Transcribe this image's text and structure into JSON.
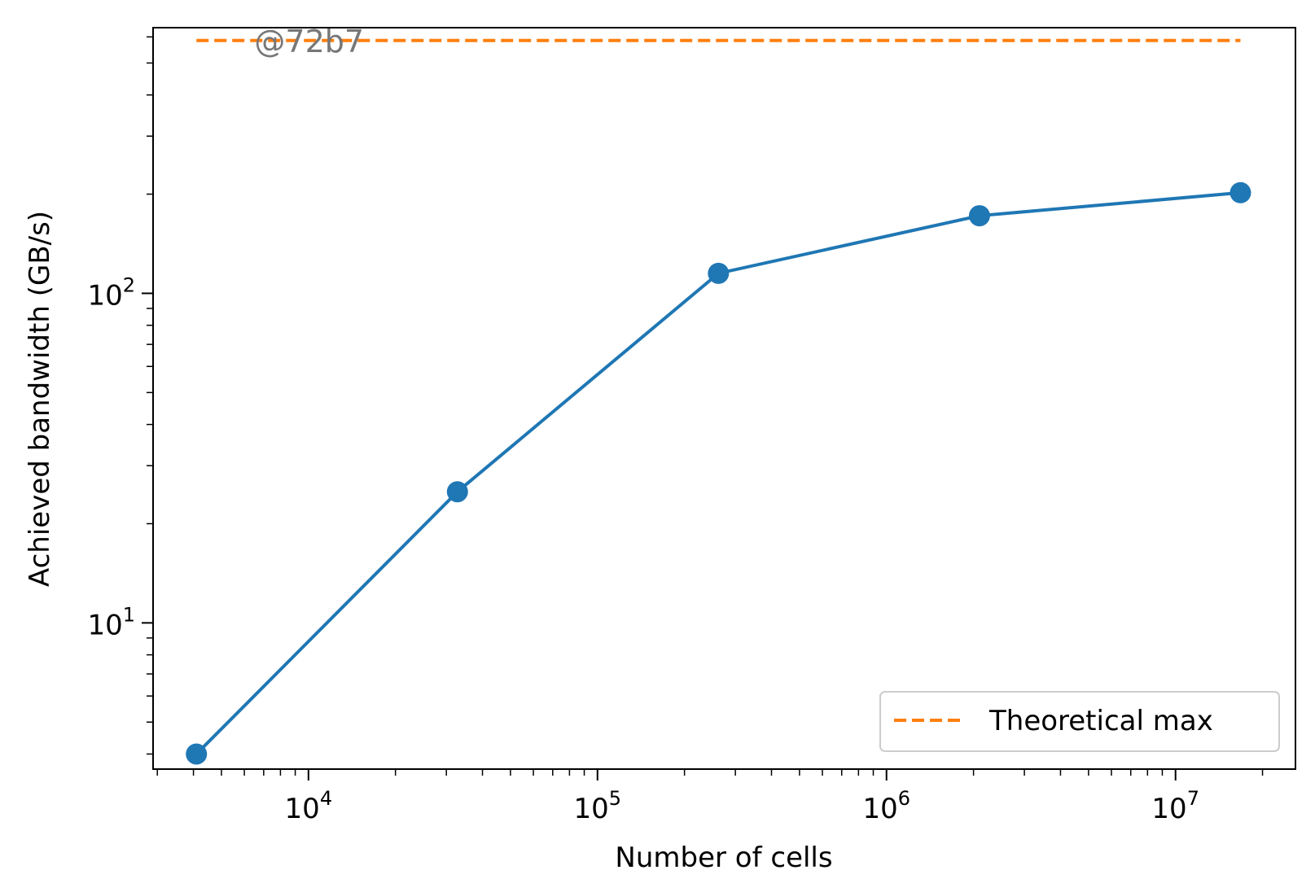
{
  "chart_data": {
    "type": "line",
    "xlabel": "Number of cells",
    "ylabel": "Achieved bandwidth (GB/s)",
    "xscale": "log",
    "yscale": "log",
    "xlim": [
      2900,
      26000000
    ],
    "ylim": [
      3.6,
      640
    ],
    "x_ticks": [
      {
        "value": 10000,
        "base": "10",
        "exp": "4"
      },
      {
        "value": 100000,
        "base": "10",
        "exp": "5"
      },
      {
        "value": 1000000,
        "base": "10",
        "exp": "6"
      },
      {
        "value": 10000000,
        "base": "10",
        "exp": "7"
      }
    ],
    "y_ticks": [
      {
        "value": 10,
        "base": "10",
        "exp": "1"
      },
      {
        "value": 100,
        "base": "10",
        "exp": "2"
      }
    ],
    "grid": false,
    "series": [
      {
        "x": [
          4096,
          32768,
          262144,
          2097152,
          16777216
        ],
        "y": [
          4.0,
          25,
          115,
          172,
          202
        ],
        "color": "#1f77b4",
        "style": "solid",
        "marker": "circle"
      },
      {
        "name": "Theoretical max",
        "x": [
          4096,
          16777216
        ],
        "y": [
          585,
          585
        ],
        "color": "#ff7f0e",
        "style": "dashed",
        "marker": "none"
      }
    ],
    "legend": {
      "position": "lower-right",
      "entries": [
        "Theoretical max"
      ]
    },
    "annotations": [
      {
        "text": "@72b7",
        "x": 6500,
        "y": 585,
        "color": "#777777"
      }
    ]
  }
}
